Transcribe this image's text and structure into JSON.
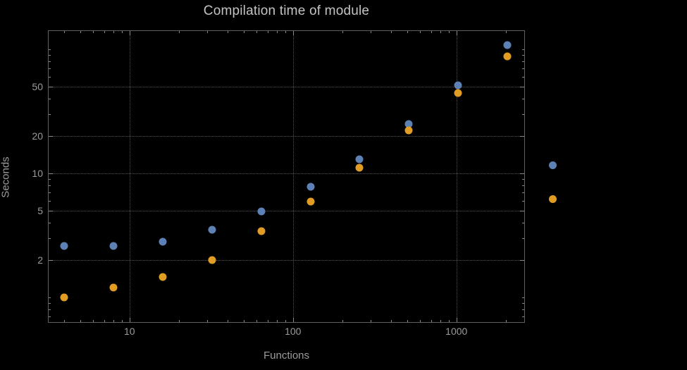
{
  "chart_data": {
    "type": "scatter",
    "title": "Compilation time of module",
    "xlabel": "Functions",
    "ylabel": "Seconds",
    "x_scale": "log",
    "y_scale": "log",
    "xlim": [
      3.2,
      2600
    ],
    "ylim": [
      0.63,
      140
    ],
    "x_ticks": [
      10,
      100,
      1000
    ],
    "x_tick_labels": [
      "10",
      "100",
      "1000"
    ],
    "y_ticks": [
      2,
      5,
      10,
      20,
      50
    ],
    "y_tick_labels": [
      "2",
      "5",
      "10",
      "20",
      "50"
    ],
    "grid": true,
    "legend_position": "right",
    "x": [
      4,
      8,
      16,
      32,
      64,
      128,
      256,
      512,
      1024,
      2048
    ],
    "series": [
      {
        "name": "series-1",
        "label": "",
        "color": "#5e81b5",
        "values": [
          2.6,
          2.6,
          2.8,
          3.5,
          4.9,
          7.8,
          13,
          25,
          51,
          108
        ]
      },
      {
        "name": "series-2",
        "label": "",
        "color": "#e19c24",
        "values": [
          1.0,
          1.2,
          1.45,
          2.0,
          3.4,
          5.9,
          11,
          22,
          44,
          87
        ]
      }
    ]
  },
  "colors": {
    "background": "#000000",
    "frame": "#606060",
    "grid": "#565656",
    "text": "#9b9b9b",
    "title": "#c3c3c3",
    "series1": "#5e81b5",
    "series2": "#e19c24"
  }
}
